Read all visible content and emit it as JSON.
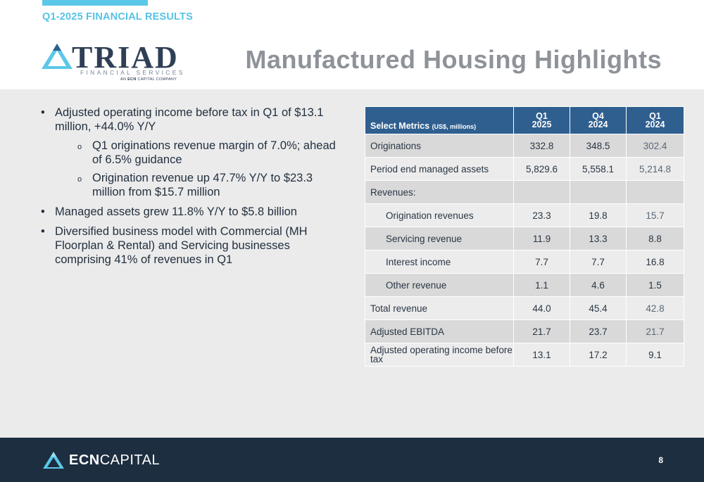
{
  "header": {
    "eyebrow": "Q1-2025 FINANCIAL RESULTS",
    "title": "Manufactured Housing Highlights",
    "accent_color": "#5bc8e8"
  },
  "logo": {
    "word": "TRIAD",
    "sub": "FINANCIAL SERVICES",
    "tag_prefix": "AN",
    "tag_brand": "ECN",
    "tag_suffix": "CAPITAL COMPANY"
  },
  "bullets": [
    {
      "text": "Adjusted operating income before tax in Q1 of $13.1 million, +44.0% Y/Y",
      "sub": [
        "Q1 originations revenue margin of 7.0%; ahead of 6.5% guidance",
        "Origination revenue up 47.7% Y/Y to $23.3 million from $15.7 million"
      ]
    },
    {
      "text": "Managed assets grew 11.8% Y/Y to $5.8 billion"
    },
    {
      "text": "Diversified business model with Commercial (MH Floorplan & Rental) and Servicing businesses comprising 41% of revenues in Q1"
    }
  ],
  "table": {
    "header": {
      "metric": "Select Metrics",
      "metric_unit": "(US$, millions)",
      "cols": [
        {
          "line1": "Q1",
          "line2": "2025"
        },
        {
          "line1": "Q4",
          "line2": "2024"
        },
        {
          "line1": "Q1",
          "line2": "2024"
        }
      ]
    },
    "rows": [
      {
        "label": "Originations",
        "values": [
          "332.8",
          "348.5",
          "302.4"
        ]
      },
      {
        "label": "Period end managed assets",
        "values": [
          "5,829.6",
          "5,558.1",
          "5,214.8"
        ]
      },
      {
        "label": "Revenues:",
        "values": [
          "",
          "",
          ""
        ]
      },
      {
        "label": "Origination revenues",
        "values": [
          "23.3",
          "19.8",
          "15.7"
        ]
      },
      {
        "label": "Servicing revenue",
        "values": [
          "11.9",
          "13.3",
          "8.8"
        ]
      },
      {
        "label": "Interest income",
        "values": [
          "7.7",
          "7.7",
          "16.8"
        ]
      },
      {
        "label": "Other revenue",
        "values": [
          "1.1",
          "4.6",
          "1.5"
        ]
      },
      {
        "label": "Total revenue",
        "values": [
          "44.0",
          "45.4",
          "42.8"
        ]
      },
      {
        "label": "Adjusted EBITDA",
        "values": [
          "21.7",
          "23.7",
          "21.7"
        ]
      },
      {
        "label": "Adjusted operating income before tax",
        "values": [
          "13.1",
          "17.2",
          "9.1"
        ]
      }
    ]
  },
  "footer": {
    "brand_bold": "ECN",
    "brand_rest": "CAPITAL",
    "page_number": "8"
  }
}
